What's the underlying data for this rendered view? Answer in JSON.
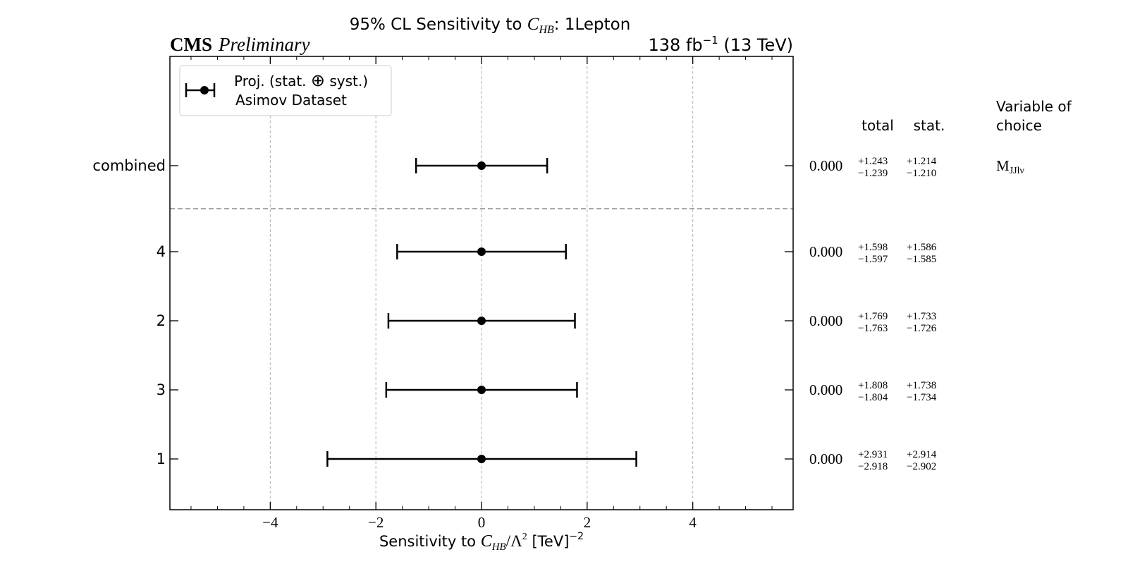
{
  "chart_data": {
    "type": "errorbar",
    "title": {
      "prefix": "95% CL Sensitivity to ",
      "var_main": "C",
      "var_sub": "HB",
      "suffix": ": 1Lepton"
    },
    "experiment": "CMS",
    "status": "Preliminary",
    "lumi": {
      "value": "138 fb",
      "exp": "−1",
      "energy": " (13 TeV)"
    },
    "xlabel": {
      "prefix": "Sensitivity to ",
      "var_main": "C",
      "var_sub": "HB",
      "mid": "/Λ",
      "sq": "2",
      "unit": " [TeV]",
      "unit_exp": "−2"
    },
    "xlim": [
      -5.9,
      5.9
    ],
    "x_ticks": [
      -4,
      -2,
      0,
      2,
      4
    ],
    "x_tick_labels": [
      "−4",
      "−2",
      "0",
      "2",
      "4"
    ],
    "grid": "vertical dashed",
    "legend": {
      "position": "top-left",
      "line1_a": "Proj. (stat. ",
      "oplus": "⊕",
      "line1_b": " syst.)",
      "line2": "Asimov Dataset"
    },
    "columns": {
      "total": "total",
      "stat": "stat.",
      "variable_line1": "Variable of",
      "variable_line2": "choice"
    },
    "rows": [
      {
        "label": "combined",
        "central": 0.0,
        "central_text": "0.000",
        "total_up": 1.243,
        "total_down": 1.239,
        "total_up_text": "+1.243",
        "total_down_text": "−1.239",
        "stat_up_text": "+1.214",
        "stat_down_text": "−1.210",
        "variable": "M",
        "variable_sub": "JJlν"
      },
      {
        "label": "4",
        "central": 0.0,
        "central_text": "0.000",
        "total_up": 1.598,
        "total_down": 1.597,
        "total_up_text": "+1.598",
        "total_down_text": "−1.597",
        "stat_up_text": "+1.586",
        "stat_down_text": "−1.585",
        "variable": "",
        "variable_sub": ""
      },
      {
        "label": "2",
        "central": 0.0,
        "central_text": "0.000",
        "total_up": 1.769,
        "total_down": 1.763,
        "total_up_text": "+1.769",
        "total_down_text": "−1.763",
        "stat_up_text": "+1.733",
        "stat_down_text": "−1.726",
        "variable": "",
        "variable_sub": ""
      },
      {
        "label": "3",
        "central": 0.0,
        "central_text": "0.000",
        "total_up": 1.808,
        "total_down": 1.804,
        "total_up_text": "+1.808",
        "total_down_text": "−1.804",
        "stat_up_text": "+1.738",
        "stat_down_text": "−1.734",
        "variable": "",
        "variable_sub": ""
      },
      {
        "label": "1",
        "central": 0.0,
        "central_text": "0.000",
        "total_up": 2.931,
        "total_down": 2.918,
        "total_up_text": "+2.931",
        "total_down_text": "−2.918",
        "stat_up_text": "+2.914",
        "stat_down_text": "−2.902",
        "variable": "",
        "variable_sub": ""
      }
    ]
  }
}
